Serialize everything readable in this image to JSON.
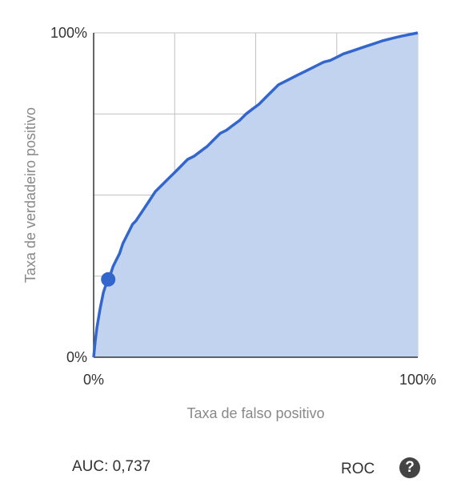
{
  "chart_data": {
    "type": "area",
    "title": "",
    "xlabel": "Taxa de falso positivo",
    "ylabel": "Taxa de verdadeiro positivo",
    "xlim": [
      0,
      100
    ],
    "ylim": [
      0,
      100
    ],
    "x_tick_labels": [
      "0%",
      "100%"
    ],
    "y_tick_labels": [
      "0%",
      "100%"
    ],
    "grid": true,
    "series": [
      {
        "x": [
          0,
          0.5,
          1,
          2,
          3,
          4,
          5,
          6,
          7,
          8,
          9,
          10,
          11,
          12,
          13,
          15,
          17,
          19,
          21,
          23,
          25,
          27,
          29,
          31,
          33,
          35,
          37,
          39,
          41,
          43,
          45,
          47,
          49,
          51,
          53,
          55,
          57,
          59,
          61,
          63,
          65,
          67,
          69,
          71,
          73,
          75,
          77,
          80,
          83,
          86,
          89,
          92,
          95,
          98,
          100
        ],
        "values": [
          0,
          5,
          9,
          15,
          20,
          23,
          25,
          28,
          30,
          32,
          35,
          37,
          39,
          41,
          42,
          45,
          48,
          51,
          53,
          55,
          57,
          59,
          61,
          62,
          63.5,
          65,
          67,
          69,
          70,
          71.5,
          73,
          75,
          76.5,
          78,
          80,
          82,
          84,
          85,
          86,
          87,
          88,
          89,
          90,
          91,
          91.5,
          92.5,
          93.5,
          94.5,
          95.5,
          96.5,
          97.5,
          98.3,
          99,
          99.6,
          100
        ]
      }
    ],
    "highlight_point": {
      "x": 4.5,
      "y": 24
    },
    "line_color": "#3366cc",
    "fill_color": "#c2d3f0",
    "grid_color": "#c0c0c0"
  },
  "footer": {
    "auc_text": "AUC: 0,737",
    "roc_label": "ROC",
    "help_icon": "question-circle-icon",
    "help_glyph": "?"
  }
}
